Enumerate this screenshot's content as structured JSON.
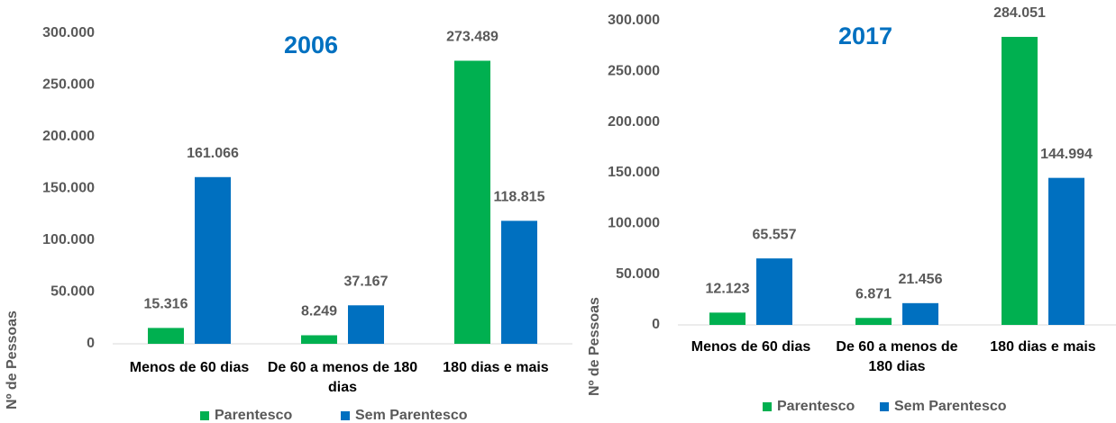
{
  "chart_data": [
    {
      "type": "bar",
      "title": "2006",
      "y_label": "Nº de Pessoas",
      "categories": [
        "Menos de 60 dias",
        "De 60 a menos de 180 dias",
        "180 dias e mais"
      ],
      "series": [
        {
          "name": "Parentesco",
          "color": "#00b050",
          "values": [
            15316,
            8249,
            273489
          ],
          "value_labels": [
            "15.316",
            "8.249",
            "273.489"
          ]
        },
        {
          "name": "Sem Parentesco",
          "color": "#0070c0",
          "values": [
            161066,
            37167,
            118815
          ],
          "value_labels": [
            "161.066",
            "37.167",
            "118.815"
          ]
        }
      ],
      "ylim": [
        0,
        300000
      ],
      "yticks": [
        0,
        {
          "value": 50000,
          "label": "50.000"
        },
        {
          "value": 100000,
          "label": "100.000"
        },
        {
          "value": 150000,
          "label": "150.000"
        },
        {
          "value": 200000,
          "label": "200.000"
        },
        {
          "value": 250000,
          "label": "250.000"
        },
        {
          "value": 300000,
          "label": "300.000"
        }
      ],
      "legend": "bottom"
    },
    {
      "type": "bar",
      "title": "2017",
      "y_label": "Nº de Pessoas",
      "categories": [
        "Menos de 60 dias",
        "De 60 a menos de 180 dias",
        "180 dias e mais"
      ],
      "series": [
        {
          "name": "Parentesco",
          "color": "#00b050",
          "values": [
            12123,
            6871,
            284051
          ],
          "value_labels": [
            "12.123",
            "6.871",
            "284.051"
          ]
        },
        {
          "name": "Sem Parentesco",
          "color": "#0070c0",
          "values": [
            65557,
            21456,
            144994
          ],
          "value_labels": [
            "65.557",
            "21.456",
            "144.994"
          ]
        }
      ],
      "ylim": [
        0,
        300000
      ],
      "yticks": [
        0,
        {
          "value": 50000,
          "label": "50.000"
        },
        {
          "value": 100000,
          "label": "100.000"
        },
        {
          "value": 150000,
          "label": "150.000"
        },
        {
          "value": 200000,
          "label": "200.000"
        },
        {
          "value": 250000,
          "label": "250.000"
        },
        {
          "value": 300000,
          "label": "300.000"
        }
      ],
      "legend": "bottom"
    }
  ]
}
